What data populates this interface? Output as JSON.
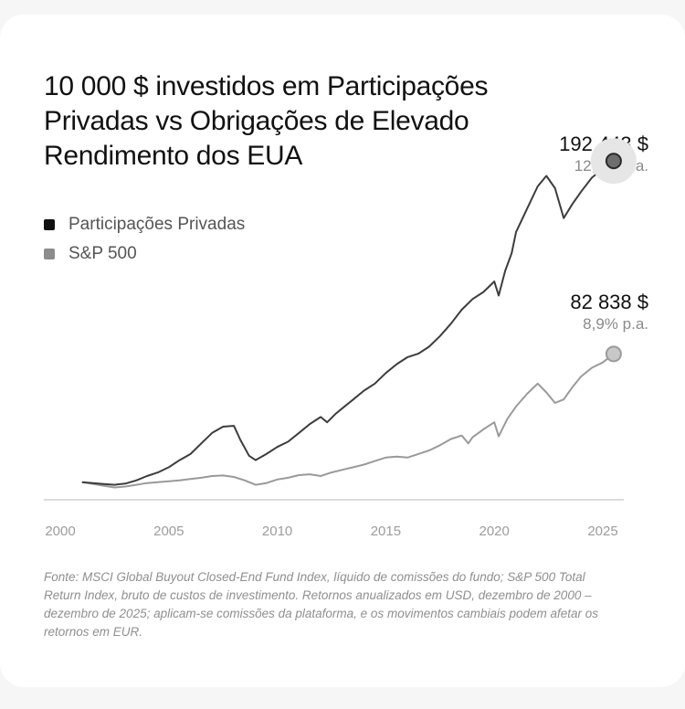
{
  "title": "10 000 $ investidos em Participações Privadas vs Obrigações de Elevado Rendimento dos EUA",
  "legend": [
    {
      "label": "Participações Privadas",
      "color": "#111111"
    },
    {
      "label": "S&P 500",
      "color": "#8c8c8c"
    }
  ],
  "annotations": {
    "private_equity": {
      "value": "192 443 $",
      "rate": "12,6% p.a."
    },
    "sp500": {
      "value": "82 838 $",
      "rate": "8,9% p.a."
    }
  },
  "source": "Fonte: MSCI Global Buyout Closed-End Fund Index, líquido de comissões do fundo; S&P 500 Total Return Index, bruto de custos de investimento. Retornos anualizados em USD, dezembro de 2000 – dezembro de 2025; aplicam-se comissões da plataforma, e os movimentos cambiais podem afetar os retornos em EUR.",
  "colors": {
    "private_equity_line": "#3d3d3d",
    "sp500_line": "#9a9a9a",
    "axis": "#d2d2d2",
    "tick_text": "#9c9c9c"
  },
  "chart_data": {
    "type": "line",
    "xlabel": "",
    "ylabel": "",
    "xlim": [
      2000,
      2026
    ],
    "ylim": [
      0,
      205000
    ],
    "grid": false,
    "legend_position": "top-left",
    "xticks": [
      2000,
      2005,
      2010,
      2015,
      2020,
      2025
    ],
    "xtick_labels": [
      "2000",
      "2005",
      "2010",
      "2015",
      "2020",
      "2025"
    ],
    "series": [
      {
        "name": "Participações Privadas",
        "points": [
          [
            2001.0,
            10000
          ],
          [
            2001.5,
            9500
          ],
          [
            2002.0,
            9000
          ],
          [
            2002.5,
            8500
          ],
          [
            2003.0,
            9200
          ],
          [
            2003.5,
            11000
          ],
          [
            2004.0,
            13500
          ],
          [
            2004.5,
            15500
          ],
          [
            2005.0,
            18500
          ],
          [
            2005.5,
            22500
          ],
          [
            2006.0,
            26000
          ],
          [
            2006.5,
            32000
          ],
          [
            2007.0,
            38000
          ],
          [
            2007.5,
            41500
          ],
          [
            2008.0,
            42000
          ],
          [
            2008.3,
            34000
          ],
          [
            2008.7,
            25000
          ],
          [
            2009.0,
            22500
          ],
          [
            2009.5,
            26000
          ],
          [
            2010.0,
            30000
          ],
          [
            2010.5,
            33000
          ],
          [
            2011.0,
            38000
          ],
          [
            2011.5,
            43000
          ],
          [
            2012.0,
            47000
          ],
          [
            2012.3,
            44000
          ],
          [
            2012.7,
            49000
          ],
          [
            2013.0,
            52000
          ],
          [
            2013.5,
            57000
          ],
          [
            2014.0,
            62000
          ],
          [
            2014.5,
            66000
          ],
          [
            2015.0,
            72000
          ],
          [
            2015.5,
            77000
          ],
          [
            2016.0,
            81000
          ],
          [
            2016.5,
            83000
          ],
          [
            2017.0,
            87000
          ],
          [
            2017.5,
            93000
          ],
          [
            2018.0,
            100000
          ],
          [
            2018.5,
            108000
          ],
          [
            2019.0,
            114000
          ],
          [
            2019.5,
            118000
          ],
          [
            2020.0,
            124000
          ],
          [
            2020.2,
            116000
          ],
          [
            2020.5,
            130000
          ],
          [
            2020.8,
            140000
          ],
          [
            2021.0,
            152000
          ],
          [
            2021.5,
            165000
          ],
          [
            2022.0,
            178000
          ],
          [
            2022.4,
            184000
          ],
          [
            2022.8,
            177000
          ],
          [
            2023.2,
            160000
          ],
          [
            2023.6,
            168000
          ],
          [
            2024.0,
            175000
          ],
          [
            2024.5,
            183000
          ],
          [
            2025.0,
            188000
          ],
          [
            2025.5,
            192443
          ]
        ]
      },
      {
        "name": "S&P 500",
        "points": [
          [
            2001.0,
            10000
          ],
          [
            2001.5,
            9000
          ],
          [
            2002.0,
            8000
          ],
          [
            2002.5,
            7000
          ],
          [
            2003.0,
            7500
          ],
          [
            2003.5,
            8500
          ],
          [
            2004.0,
            9500
          ],
          [
            2004.5,
            10000
          ],
          [
            2005.0,
            10500
          ],
          [
            2005.5,
            11000
          ],
          [
            2006.0,
            11800
          ],
          [
            2006.5,
            12500
          ],
          [
            2007.0,
            13500
          ],
          [
            2007.5,
            13800
          ],
          [
            2008.0,
            13000
          ],
          [
            2008.5,
            11000
          ],
          [
            2009.0,
            8500
          ],
          [
            2009.5,
            9500
          ],
          [
            2010.0,
            11500
          ],
          [
            2010.5,
            12500
          ],
          [
            2011.0,
            14000
          ],
          [
            2011.5,
            14500
          ],
          [
            2012.0,
            13500
          ],
          [
            2012.5,
            15500
          ],
          [
            2013.0,
            17000
          ],
          [
            2013.5,
            18500
          ],
          [
            2014.0,
            20000
          ],
          [
            2014.5,
            22000
          ],
          [
            2015.0,
            24000
          ],
          [
            2015.5,
            24500
          ],
          [
            2016.0,
            24000
          ],
          [
            2016.5,
            26000
          ],
          [
            2017.0,
            28000
          ],
          [
            2017.5,
            31000
          ],
          [
            2018.0,
            34500
          ],
          [
            2018.5,
            36500
          ],
          [
            2018.8,
            32000
          ],
          [
            2019.0,
            35500
          ],
          [
            2019.5,
            40000
          ],
          [
            2020.0,
            44000
          ],
          [
            2020.2,
            36000
          ],
          [
            2020.6,
            46000
          ],
          [
            2021.0,
            53000
          ],
          [
            2021.5,
            60000
          ],
          [
            2022.0,
            66000
          ],
          [
            2022.4,
            61000
          ],
          [
            2022.8,
            55000
          ],
          [
            2023.2,
            57000
          ],
          [
            2023.6,
            64000
          ],
          [
            2024.0,
            70000
          ],
          [
            2024.5,
            75000
          ],
          [
            2025.0,
            78000
          ],
          [
            2025.5,
            82838
          ]
        ]
      }
    ]
  }
}
